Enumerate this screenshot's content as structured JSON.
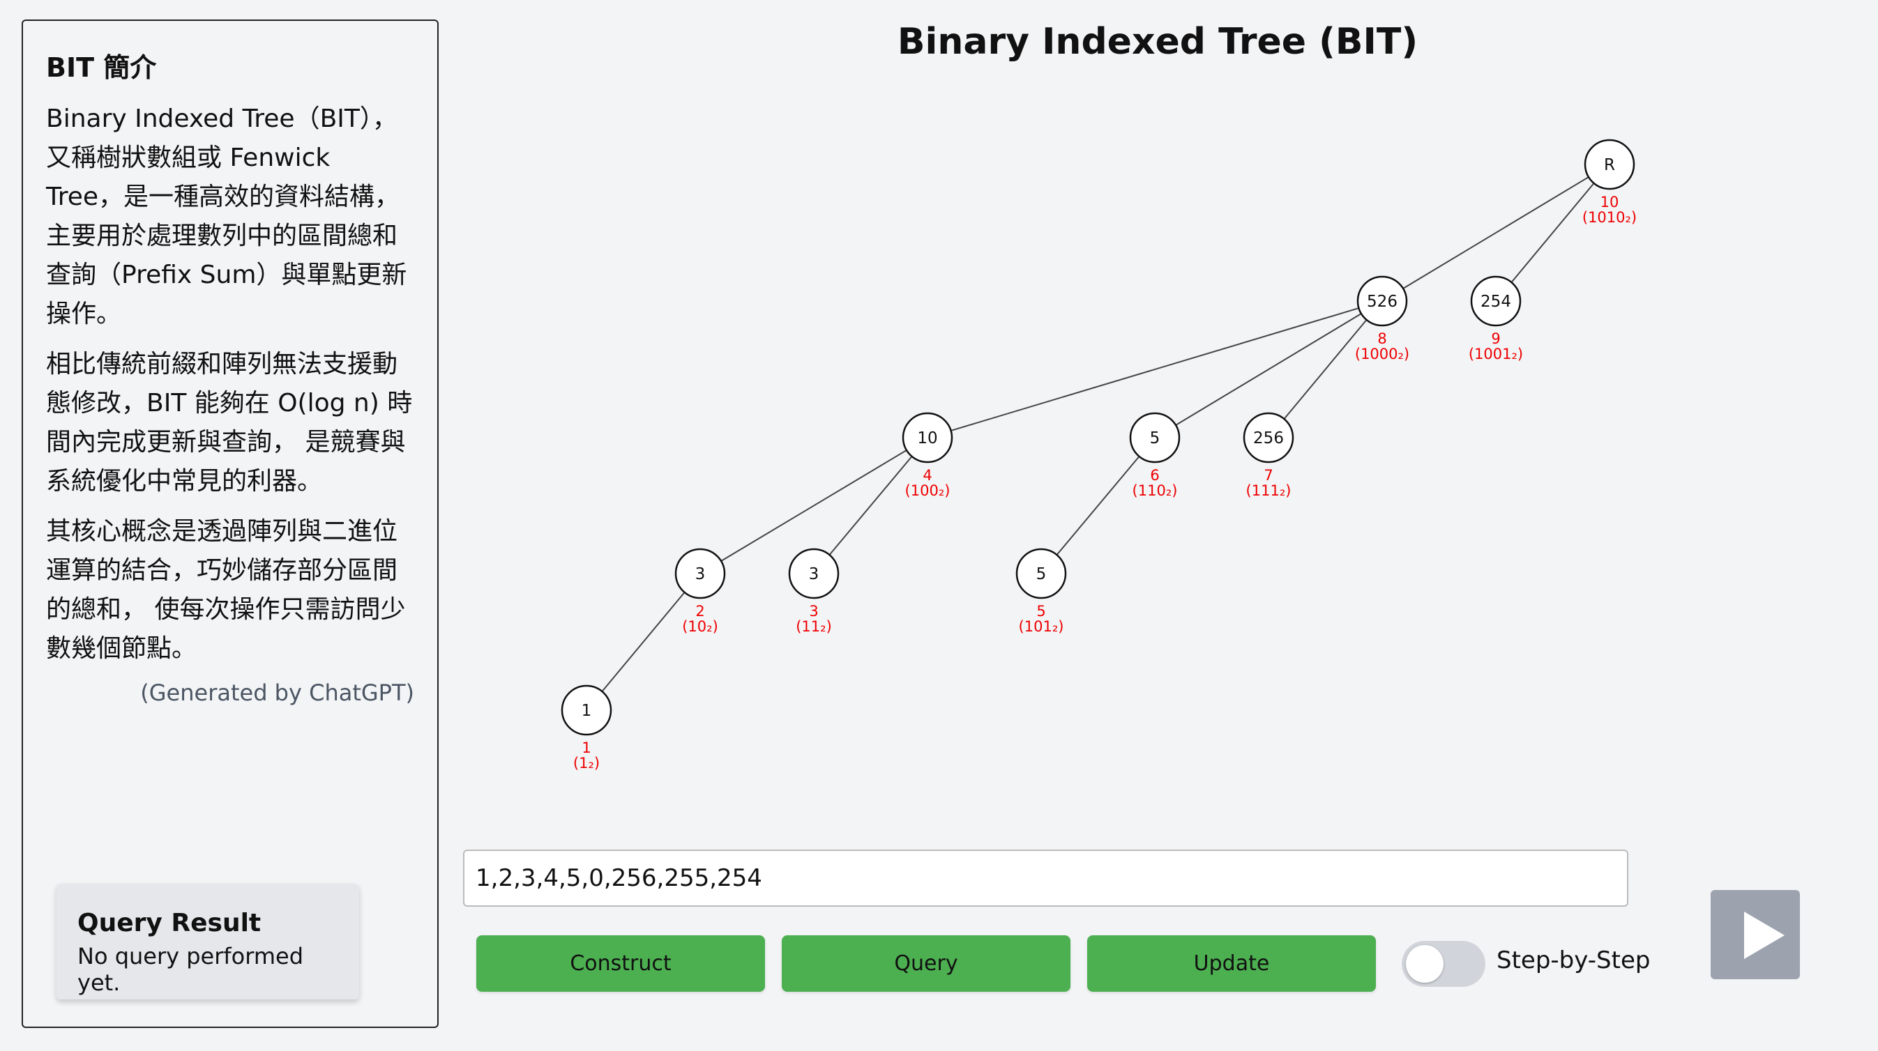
{
  "sidebar": {
    "heading": "BIT 簡介",
    "paragraphs": [
      "Binary Indexed Tree（BIT），又稱樹狀數組或 Fenwick Tree，是一種高效的資料結構， 主要用於處理數列中的區間總和查詢（Prefix Sum）與單點更新操作。",
      "相比傳統前綴和陣列無法支援動態修改，BIT 能夠在 O(log n) 時間內完成更新與查詢， 是競賽與系統優化中常見的利器。",
      "其核心概念是透過陣列與二進位運算的結合，巧妙儲存部分區間的總和， 使每次操作只需訪問少數幾個節點。"
    ],
    "credit": "(Generated by ChatGPT)"
  },
  "query_result": {
    "title": "Query Result",
    "value": "No query performed yet."
  },
  "page_title": "Binary Indexed Tree (BIT)",
  "tree": {
    "nodes": [
      {
        "id": "R",
        "value": "R",
        "index": "10",
        "binary": "(1010₂)"
      },
      {
        "id": "8",
        "value": "526",
        "index": "8",
        "binary": "(1000₂)"
      },
      {
        "id": "9",
        "value": "254",
        "index": "9",
        "binary": "(1001₂)"
      },
      {
        "id": "4",
        "value": "10",
        "index": "4",
        "binary": "(100₂)"
      },
      {
        "id": "6",
        "value": "5",
        "index": "6",
        "binary": "(110₂)"
      },
      {
        "id": "7",
        "value": "256",
        "index": "7",
        "binary": "(111₂)"
      },
      {
        "id": "2",
        "value": "3",
        "index": "2",
        "binary": "(10₂)"
      },
      {
        "id": "3",
        "value": "3",
        "index": "3",
        "binary": "(11₂)"
      },
      {
        "id": "5",
        "value": "5",
        "index": "5",
        "binary": "(101₂)"
      },
      {
        "id": "1",
        "value": "1",
        "index": "1",
        "binary": "(1₂)"
      }
    ],
    "edges": [
      [
        "R",
        "8"
      ],
      [
        "R",
        "9"
      ],
      [
        "8",
        "4"
      ],
      [
        "8",
        "6"
      ],
      [
        "8",
        "7"
      ],
      [
        "4",
        "2"
      ],
      [
        "4",
        "3"
      ],
      [
        "6",
        "5"
      ],
      [
        "2",
        "1"
      ]
    ]
  },
  "controls": {
    "array_value": "1,2,3,4,5,0,256,255,254",
    "construct_label": "Construct",
    "query_label": "Query",
    "update_label": "Update",
    "step_label": "Step-by-Step",
    "step_enabled": false
  }
}
